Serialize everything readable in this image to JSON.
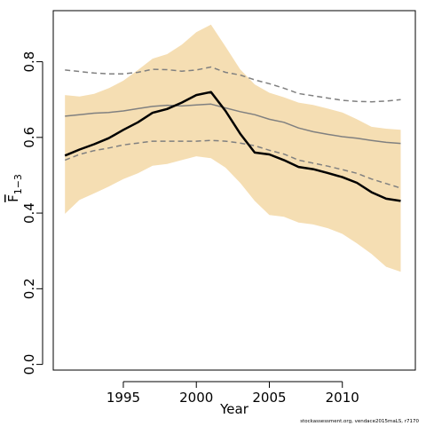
{
  "chart_data": {
    "type": "line",
    "title": "",
    "xlabel": "Year",
    "ylabel_main": "F",
    "ylabel_sub": "1−3",
    "xlim": [
      1990.2,
      2015.0
    ],
    "ylim": [
      -0.015,
      0.935
    ],
    "x_ticks": [
      1995,
      2000,
      2005,
      2010
    ],
    "x_tick_labels": [
      "1995",
      "2000",
      "2005",
      "2010"
    ],
    "y_ticks": [
      0.0,
      0.2,
      0.4,
      0.6,
      0.8
    ],
    "y_tick_labels": [
      "0.0",
      "0.2",
      "0.4",
      "0.6",
      "0.8"
    ],
    "grid": false,
    "x": [
      1991,
      1992,
      1993,
      1994,
      1995,
      1996,
      1997,
      1998,
      1999,
      2000,
      2001,
      2002,
      2003,
      2004,
      2005,
      2006,
      2007,
      2008,
      2009,
      2010,
      2011,
      2012,
      2013,
      2014
    ],
    "band": {
      "color": "#F5DEB3",
      "upper": [
        0.712,
        0.708,
        0.715,
        0.73,
        0.75,
        0.778,
        0.808,
        0.82,
        0.845,
        0.878,
        0.898,
        0.84,
        0.78,
        0.74,
        0.718,
        0.706,
        0.692,
        0.686,
        0.676,
        0.666,
        0.648,
        0.628,
        0.623,
        0.62
      ],
      "lower": [
        0.398,
        0.435,
        0.452,
        0.47,
        0.49,
        0.505,
        0.525,
        0.53,
        0.54,
        0.55,
        0.545,
        0.52,
        0.48,
        0.432,
        0.395,
        0.39,
        0.375,
        0.37,
        0.36,
        0.345,
        0.32,
        0.292,
        0.258,
        0.245
      ]
    },
    "series": [
      {
        "role": "estimate",
        "color": "#000000",
        "style": "solid",
        "values": [
          0.552,
          0.568,
          0.582,
          0.598,
          0.62,
          0.64,
          0.665,
          0.675,
          0.692,
          0.712,
          0.72,
          0.67,
          0.61,
          0.56,
          0.555,
          0.54,
          0.522,
          0.516,
          0.506,
          0.495,
          0.48,
          0.455,
          0.438,
          0.432
        ]
      },
      {
        "role": "median",
        "color": "#808080",
        "style": "solid",
        "values": [
          0.656,
          0.66,
          0.664,
          0.666,
          0.67,
          0.676,
          0.682,
          0.685,
          0.683,
          0.686,
          0.688,
          0.678,
          0.668,
          0.66,
          0.648,
          0.64,
          0.625,
          0.615,
          0.608,
          0.602,
          0.598,
          0.592,
          0.587,
          0.584
        ]
      },
      {
        "role": "upper-quantile",
        "color": "#808080",
        "style": "dashed",
        "values": [
          0.778,
          0.774,
          0.77,
          0.768,
          0.768,
          0.772,
          0.78,
          0.779,
          0.775,
          0.778,
          0.786,
          0.772,
          0.765,
          0.752,
          0.742,
          0.73,
          0.716,
          0.71,
          0.704,
          0.698,
          0.695,
          0.694,
          0.696,
          0.7
        ]
      },
      {
        "role": "lower-quantile",
        "color": "#808080",
        "style": "dashed",
        "values": [
          0.54,
          0.555,
          0.565,
          0.572,
          0.58,
          0.585,
          0.59,
          0.59,
          0.59,
          0.59,
          0.592,
          0.59,
          0.585,
          0.578,
          0.566,
          0.556,
          0.54,
          0.532,
          0.524,
          0.515,
          0.505,
          0.49,
          0.478,
          0.466
        ]
      }
    ]
  },
  "footer_text": "stockassessment.org, vendace2015maLS, r7170"
}
